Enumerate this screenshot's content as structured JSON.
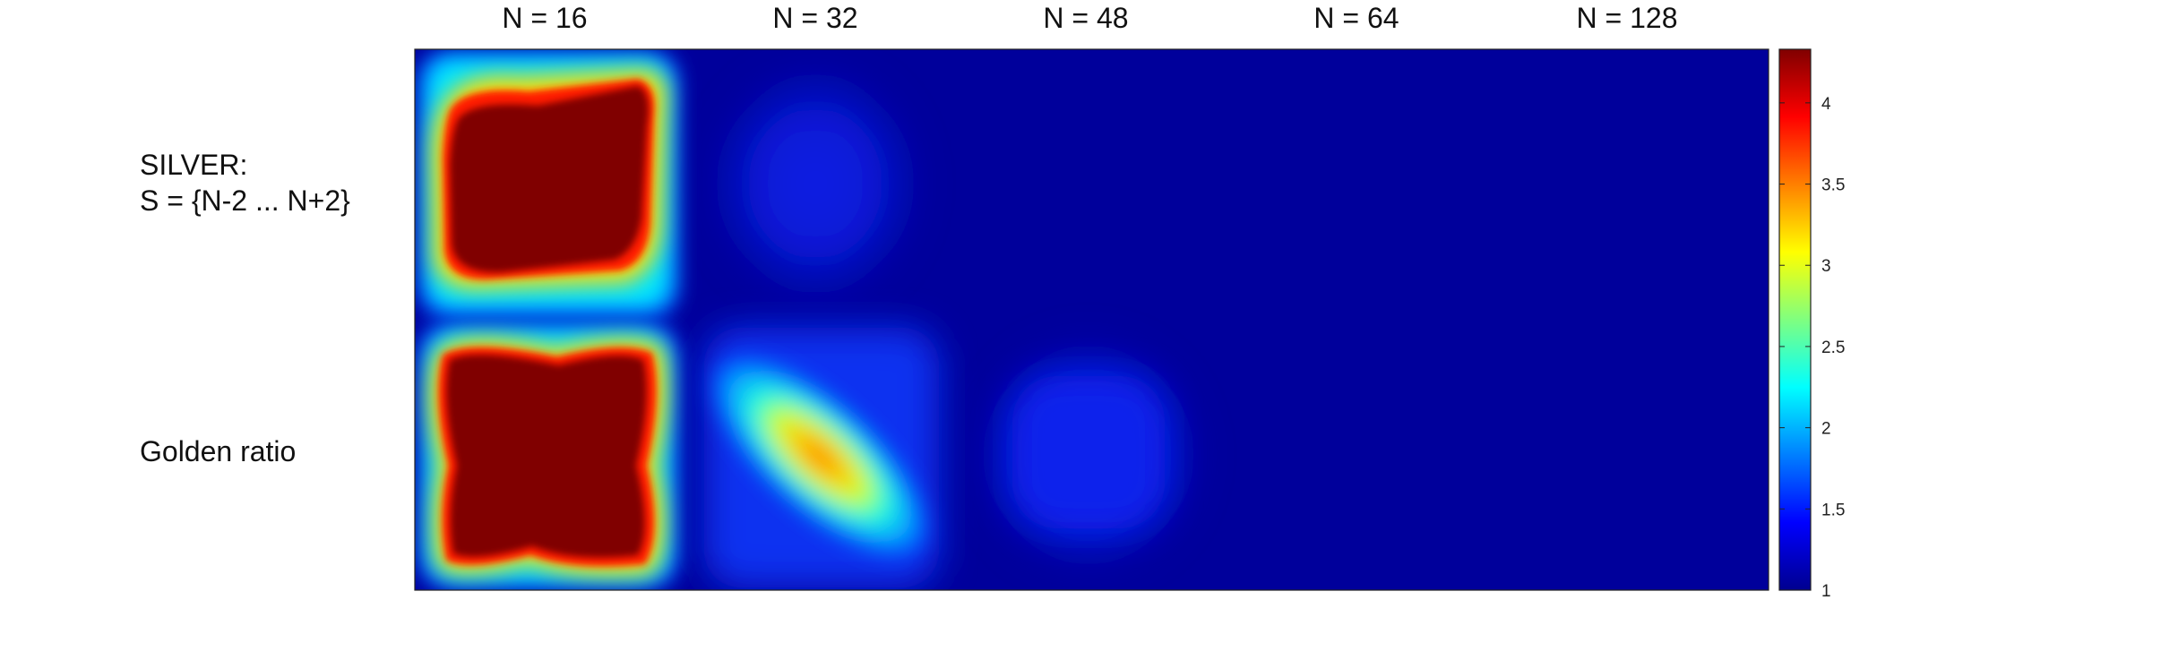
{
  "chart_data": {
    "type": "heatmap",
    "columns": [
      "N = 16",
      "N = 32",
      "N = 48",
      "N = 64",
      "N = 128"
    ],
    "rows": [
      {
        "label_lines": [
          "SILVER:",
          "S = {N-2 ... N+2}"
        ]
      },
      {
        "label_lines": [
          "Golden ratio"
        ]
      }
    ],
    "colormap": "jet",
    "colorbar": {
      "range": [
        1,
        4.33
      ],
      "ticks": [
        "1",
        "1.5",
        "2",
        "2.5",
        "3",
        "3.5",
        "4"
      ],
      "tick_values": [
        1,
        1.5,
        2,
        2.5,
        3,
        3.5,
        4
      ]
    },
    "panel_peak_values": [
      [
        4.33,
        1.3,
        1.0,
        1.0,
        1.0
      ],
      [
        4.33,
        3.8,
        1.25,
        1.0,
        1.0
      ]
    ],
    "grid": false
  }
}
